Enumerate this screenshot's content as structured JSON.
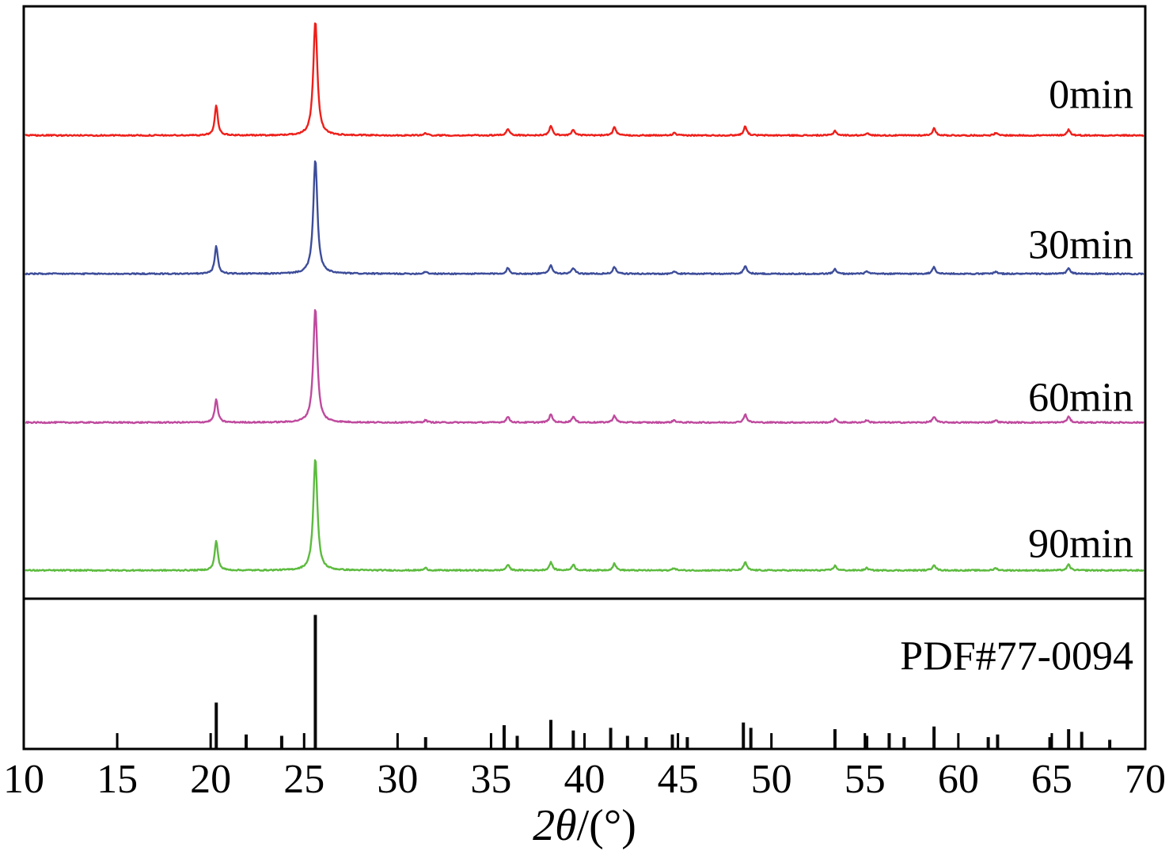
{
  "chart_data": {
    "type": "line",
    "title": "",
    "xlabel": "2θ/(°)",
    "xlabel_symbol": "2θ",
    "xlabel_unit": "/(°)",
    "xlim": [
      10,
      70
    ],
    "x_ticks": [
      10,
      15,
      20,
      25,
      30,
      35,
      40,
      45,
      50,
      55,
      60,
      65,
      70
    ],
    "grid": false,
    "legend_position": "right-inside",
    "axis_color": "#000000",
    "series": [
      {
        "name": "0min",
        "color": "#ee1f1a",
        "peaks": [
          [
            20.3,
            26
          ],
          [
            25.6,
            100
          ],
          [
            31.5,
            2
          ],
          [
            35.9,
            6
          ],
          [
            38.2,
            8
          ],
          [
            39.4,
            5
          ],
          [
            41.6,
            7
          ],
          [
            44.8,
            2
          ],
          [
            48.6,
            8
          ],
          [
            53.4,
            4
          ],
          [
            55.1,
            2
          ],
          [
            58.7,
            6
          ],
          [
            62.0,
            2
          ],
          [
            65.9,
            5
          ]
        ]
      },
      {
        "name": "30min",
        "color": "#3d4d9a",
        "peaks": [
          [
            20.3,
            24
          ],
          [
            25.6,
            100
          ],
          [
            31.5,
            2
          ],
          [
            35.9,
            5
          ],
          [
            38.2,
            8
          ],
          [
            39.4,
            5
          ],
          [
            41.6,
            6
          ],
          [
            44.8,
            2
          ],
          [
            48.6,
            7
          ],
          [
            53.4,
            4
          ],
          [
            55.1,
            2
          ],
          [
            58.7,
            6
          ],
          [
            62.0,
            2
          ],
          [
            65.9,
            5
          ]
        ]
      },
      {
        "name": "60min",
        "color": "#bf4a9e",
        "peaks": [
          [
            20.3,
            20
          ],
          [
            25.6,
            100
          ],
          [
            31.5,
            2
          ],
          [
            35.9,
            5
          ],
          [
            38.2,
            7
          ],
          [
            39.4,
            5
          ],
          [
            41.6,
            6
          ],
          [
            44.8,
            2
          ],
          [
            48.6,
            7
          ],
          [
            53.4,
            3
          ],
          [
            55.1,
            2
          ],
          [
            58.7,
            5
          ],
          [
            62.0,
            2
          ],
          [
            65.9,
            5
          ]
        ]
      },
      {
        "name": "90min",
        "color": "#5dbb3f",
        "peaks": [
          [
            20.3,
            26
          ],
          [
            25.6,
            98
          ],
          [
            31.5,
            2
          ],
          [
            35.9,
            5
          ],
          [
            38.2,
            7
          ],
          [
            39.4,
            5
          ],
          [
            41.6,
            6
          ],
          [
            44.8,
            2
          ],
          [
            48.6,
            7
          ],
          [
            53.4,
            4
          ],
          [
            55.1,
            2
          ],
          [
            58.7,
            5
          ],
          [
            62.0,
            2
          ],
          [
            65.9,
            5
          ]
        ]
      }
    ],
    "reference": {
      "name": "PDF#77-0094",
      "color": "#0a0a0a",
      "sticks": [
        [
          20.3,
          34
        ],
        [
          21.9,
          10
        ],
        [
          23.8,
          9
        ],
        [
          25.6,
          100
        ],
        [
          31.5,
          8
        ],
        [
          35.7,
          17
        ],
        [
          36.4,
          9
        ],
        [
          38.2,
          21
        ],
        [
          39.4,
          13
        ],
        [
          41.4,
          15
        ],
        [
          42.3,
          9
        ],
        [
          43.3,
          8
        ],
        [
          44.7,
          10
        ],
        [
          45.5,
          8
        ],
        [
          48.5,
          19
        ],
        [
          48.9,
          15
        ],
        [
          53.4,
          14
        ],
        [
          55.1,
          9
        ],
        [
          56.3,
          11
        ],
        [
          57.1,
          8
        ],
        [
          58.7,
          16
        ],
        [
          61.6,
          8
        ],
        [
          62.1,
          10
        ],
        [
          64.9,
          8
        ],
        [
          65.9,
          14
        ],
        [
          66.6,
          12
        ],
        [
          68.1,
          6
        ]
      ]
    }
  }
}
